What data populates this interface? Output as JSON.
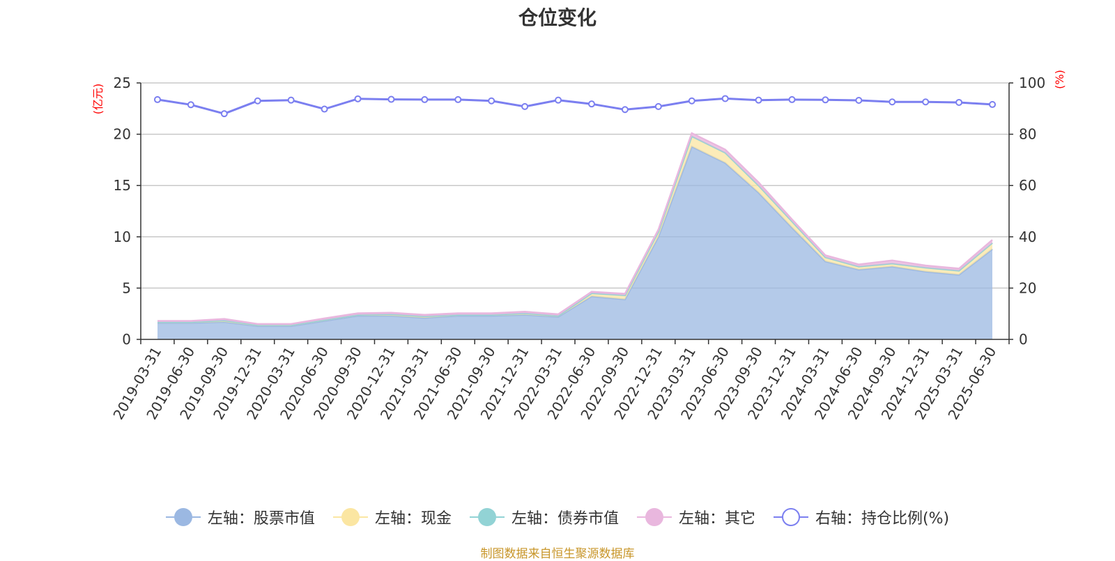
{
  "chart_data": {
    "type": "area",
    "title": "仓位变化",
    "left_axis_unit": "(亿元)",
    "right_axis_unit": "(%)",
    "ylim_left": [
      0,
      25
    ],
    "yticks_left": [
      0,
      5,
      10,
      15,
      20,
      25
    ],
    "ylim_right": [
      0,
      100
    ],
    "yticks_right": [
      0,
      20,
      40,
      60,
      80,
      100
    ],
    "grid": true,
    "legend_position": "bottom",
    "categories": [
      "2019-03-31",
      "2019-06-30",
      "2019-09-30",
      "2019-12-31",
      "2020-03-31",
      "2020-06-30",
      "2020-09-30",
      "2020-12-31",
      "2021-03-31",
      "2021-06-30",
      "2021-09-30",
      "2021-12-31",
      "2022-03-31",
      "2022-06-30",
      "2022-09-30",
      "2022-12-31",
      "2023-03-31",
      "2023-06-30",
      "2023-09-30",
      "2023-12-31",
      "2024-03-31",
      "2024-06-30",
      "2024-09-30",
      "2024-12-31",
      "2025-03-31",
      "2025-06-30"
    ],
    "series": [
      {
        "name": "左轴：股票市值",
        "axis": "left",
        "type": "stacked-area",
        "color": "#9bb8e2",
        "values": [
          1.6,
          1.6,
          1.7,
          1.3,
          1.3,
          1.8,
          2.3,
          2.3,
          2.1,
          2.3,
          2.3,
          2.4,
          2.2,
          4.2,
          3.9,
          10.0,
          18.8,
          17.2,
          14.3,
          10.9,
          7.6,
          6.8,
          7.1,
          6.6,
          6.3,
          8.8
        ]
      },
      {
        "name": "左轴：现金",
        "axis": "left",
        "type": "stacked-area",
        "color": "#fbe6a2",
        "values": [
          0.1,
          0.1,
          0.15,
          0.1,
          0.1,
          0.1,
          0.1,
          0.15,
          0.15,
          0.1,
          0.1,
          0.15,
          0.1,
          0.3,
          0.4,
          0.5,
          1.0,
          1.0,
          0.7,
          0.6,
          0.4,
          0.3,
          0.3,
          0.4,
          0.4,
          0.6
        ]
      },
      {
        "name": "左轴：债券市值",
        "axis": "left",
        "type": "stacked-area",
        "color": "#92d3d5",
        "values": [
          0,
          0,
          0,
          0,
          0,
          0,
          0,
          0,
          0,
          0,
          0,
          0,
          0,
          0,
          0,
          0,
          0,
          0,
          0,
          0,
          0,
          0,
          0,
          0,
          0,
          0
        ]
      },
      {
        "name": "左轴：其它",
        "axis": "left",
        "type": "stacked-area",
        "color": "#e9b7de",
        "values": [
          0.1,
          0.1,
          0.15,
          0.1,
          0.1,
          0.15,
          0.15,
          0.15,
          0.15,
          0.15,
          0.15,
          0.15,
          0.15,
          0.15,
          0.15,
          0.2,
          0.3,
          0.3,
          0.3,
          0.2,
          0.2,
          0.2,
          0.3,
          0.2,
          0.2,
          0.3
        ]
      },
      {
        "name": "右轴：持仓比例(%)",
        "axis": "right",
        "type": "line",
        "color": "#7b7ff0",
        "values": [
          93.5,
          91.5,
          88.0,
          93.0,
          93.3,
          89.8,
          93.8,
          93.6,
          93.5,
          93.5,
          93.0,
          90.8,
          93.3,
          91.8,
          89.6,
          90.8,
          93.0,
          93.9,
          93.3,
          93.5,
          93.4,
          93.2,
          92.6,
          92.6,
          92.4,
          91.6
        ]
      }
    ]
  },
  "source_text": "制图数据来自恒生聚源数据库"
}
